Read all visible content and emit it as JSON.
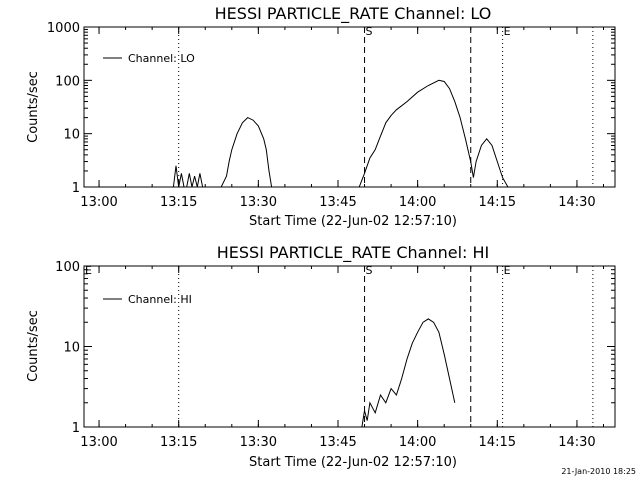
{
  "chart_data": [
    {
      "type": "line",
      "title": "HESSI PARTICLE_RATE Channel: LO",
      "xlabel": "Start Time (22-Jun-02 12:57:10)",
      "ylabel": "Counts/sec",
      "yscale": "log",
      "xlim": [
        "12:57:10",
        "14:37:10"
      ],
      "ylim": [
        1,
        1000
      ],
      "x_ticks": [
        "13:00",
        "13:15",
        "13:30",
        "13:45",
        "14:00",
        "14:15",
        "14:30"
      ],
      "y_ticks": [
        "1",
        "10",
        "100",
        "1000"
      ],
      "legend": "top-left",
      "markers": [
        {
          "label": "",
          "time": "13:15",
          "style": "dotted"
        },
        {
          "label": "S",
          "time": "13:50",
          "style": "dashed"
        },
        {
          "label": "",
          "time": "14:10",
          "style": "dashed"
        },
        {
          "label": "E",
          "time": "14:16",
          "style": "dotted"
        },
        {
          "label": "",
          "time": "14:33",
          "style": "dotted"
        }
      ],
      "series": [
        {
          "name": "Channel: LO",
          "x": [
            "13:14",
            "13:14.5",
            "13:15",
            "13:15.5",
            "13:16",
            "13:16.5",
            "13:17",
            "13:17.5",
            "13:18",
            "13:18.5",
            "13:19",
            "13:19.5",
            "13:20",
            "13:21",
            "13:22",
            "13:23",
            "13:24",
            "13:24.5",
            "13:25",
            "13:26",
            "13:27",
            "13:28",
            "13:29",
            "13:30",
            "13:31",
            "13:31.5",
            "13:32",
            "13:32.5",
            "13:33",
            "13:49",
            "13:50",
            "13:51",
            "13:52",
            "13:53",
            "13:54",
            "13:55",
            "13:56",
            "13:58",
            "14:00",
            "14:02",
            "14:04",
            "14:05",
            "14:06",
            "14:07",
            "14:08",
            "14:09",
            "14:10",
            "14:10.5",
            "14:11",
            "14:12",
            "14:13",
            "14:14",
            "14:15",
            "14:16",
            "14:17"
          ],
          "values": [
            1,
            2.5,
            1,
            1.8,
            1,
            1,
            1.8,
            1,
            1.6,
            1,
            1.8,
            1,
            1,
            1,
            1,
            1,
            1.6,
            3,
            5,
            10,
            16,
            20,
            18,
            14,
            8,
            5,
            2,
            1,
            1,
            1,
            1.8,
            3.5,
            5,
            9,
            16,
            22,
            28,
            40,
            60,
            80,
            100,
            95,
            70,
            40,
            20,
            8,
            3,
            1.5,
            3,
            6,
            8,
            6,
            3,
            1.5,
            1
          ]
        }
      ]
    },
    {
      "type": "line",
      "title": "HESSI PARTICLE_RATE Channel: HI",
      "xlabel": "Start Time (22-Jun-02 12:57:10)",
      "ylabel": "Counts/sec",
      "yscale": "log",
      "xlim": [
        "12:57:10",
        "14:37:10"
      ],
      "ylim": [
        1,
        100
      ],
      "x_ticks": [
        "13:00",
        "13:15",
        "13:30",
        "13:45",
        "14:00",
        "14:15",
        "14:30"
      ],
      "y_ticks": [
        "1",
        "10",
        "100"
      ],
      "legend": "top-left",
      "markers": [
        {
          "label": "E",
          "time": "12:57:10",
          "style": "none"
        },
        {
          "label": "",
          "time": "13:15",
          "style": "dotted"
        },
        {
          "label": "S",
          "time": "13:50",
          "style": "dashed"
        },
        {
          "label": "",
          "time": "14:10",
          "style": "dashed"
        },
        {
          "label": "E",
          "time": "14:16",
          "style": "dotted"
        },
        {
          "label": "",
          "time": "14:33",
          "style": "dotted"
        }
      ],
      "series": [
        {
          "name": "Channel: HI",
          "x": [
            "13:49.5",
            "13:50",
            "13:50.5",
            "13:51",
            "13:52",
            "13:53",
            "13:54",
            "13:55",
            "13:56",
            "13:57",
            "13:58",
            "13:59",
            "14:00",
            "14:01",
            "14:02",
            "14:03",
            "14:04",
            "14:05",
            "14:06",
            "14:07"
          ],
          "values": [
            1,
            1.6,
            1.2,
            2,
            1.5,
            2.5,
            2,
            3,
            2.5,
            4,
            7,
            11,
            15,
            20,
            22,
            20,
            15,
            8,
            4,
            2
          ]
        }
      ]
    }
  ],
  "timestamp": "21-Jan-2010 18:25"
}
